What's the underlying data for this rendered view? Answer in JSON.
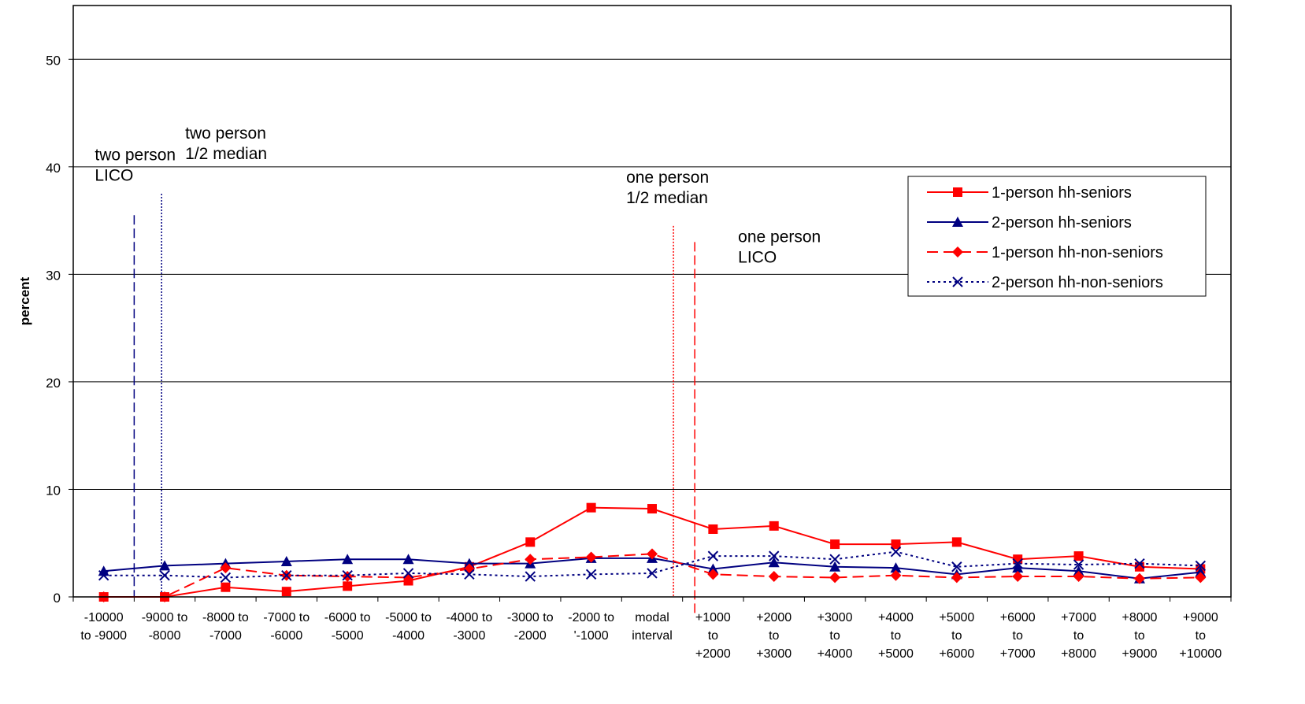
{
  "chart_data": {
    "type": "line",
    "ylabel": "percent",
    "ylim": [
      0,
      55
    ],
    "yticks": [
      "0",
      "10",
      "20",
      "30",
      "40",
      "50"
    ],
    "grid": "horizontal",
    "legend_position": "right",
    "categories": [
      [
        "-10000",
        "to -9000"
      ],
      [
        "-9000 to",
        "-8000"
      ],
      [
        "-8000 to",
        "-7000"
      ],
      [
        "-7000 to",
        "-6000"
      ],
      [
        "-6000 to",
        "-5000"
      ],
      [
        "-5000 to",
        "-4000"
      ],
      [
        "-4000 to",
        "-3000"
      ],
      [
        "-3000 to",
        "-2000"
      ],
      [
        "-2000 to",
        "'-1000"
      ],
      [
        "modal",
        "interval"
      ],
      [
        "+1000",
        "to",
        "+2000"
      ],
      [
        "+2000",
        "to",
        "+3000"
      ],
      [
        "+3000",
        "to",
        "+4000"
      ],
      [
        "+4000",
        "to",
        "+5000"
      ],
      [
        "+5000",
        "to",
        "+6000"
      ],
      [
        "+6000",
        "to",
        "+7000"
      ],
      [
        "+7000",
        "to",
        "+8000"
      ],
      [
        "+8000",
        "to",
        "+9000"
      ],
      [
        "+9000",
        "to",
        "+10000"
      ]
    ],
    "series": [
      {
        "name": "1-person hh-seniors",
        "color": "#ff0000",
        "marker": "square",
        "dash": "solid",
        "values": [
          0.0,
          0.0,
          0.9,
          0.5,
          1.0,
          1.5,
          2.8,
          5.1,
          8.3,
          8.2,
          6.3,
          6.6,
          4.9,
          4.9,
          5.1,
          3.5,
          3.8,
          2.8,
          2.6
        ]
      },
      {
        "name": "2-person hh-seniors",
        "color": "#000080",
        "marker": "triangle",
        "dash": "solid",
        "values": [
          2.4,
          2.9,
          3.1,
          3.3,
          3.5,
          3.5,
          3.1,
          3.1,
          3.6,
          3.6,
          2.6,
          3.2,
          2.8,
          2.7,
          2.1,
          2.7,
          2.4,
          1.7,
          2.3
        ]
      },
      {
        "name": "1-person hh-non-seniors",
        "color": "#ff0000",
        "marker": "diamond",
        "dash": "dashed",
        "values": [
          0.0,
          0.0,
          2.7,
          2.0,
          1.9,
          1.8,
          2.6,
          3.5,
          3.7,
          4.0,
          2.1,
          1.9,
          1.8,
          2.0,
          1.8,
          1.9,
          1.9,
          1.7,
          1.8
        ]
      },
      {
        "name": "2-person hh-non-seniors",
        "color": "#000080",
        "marker": "x",
        "dash": "dotted",
        "values": [
          2.0,
          2.0,
          1.8,
          2.0,
          2.0,
          2.2,
          2.1,
          1.9,
          2.1,
          2.2,
          3.8,
          3.8,
          3.5,
          4.2,
          2.8,
          3.1,
          3.0,
          3.1,
          2.9
        ]
      }
    ],
    "annotations": [
      {
        "lines": [
          "two person",
          "LICO"
        ],
        "color": "#000080",
        "line_style": "dashed",
        "at_category": 0.5,
        "line_top": 35.5
      },
      {
        "lines": [
          "two person",
          "1/2 median"
        ],
        "color": "#000080",
        "line_style": "dotted",
        "at_category": 0.95,
        "line_top": 37.5
      },
      {
        "lines": [
          "one person",
          "1/2 median"
        ],
        "color": "#ff0000",
        "line_style": "dotted",
        "at_category": 9.35,
        "line_top": 34.5
      },
      {
        "lines": [
          "one person",
          "LICO"
        ],
        "color": "#ff0000",
        "line_style": "dashed",
        "at_category": 9.7,
        "line_top": 33.0
      }
    ]
  }
}
